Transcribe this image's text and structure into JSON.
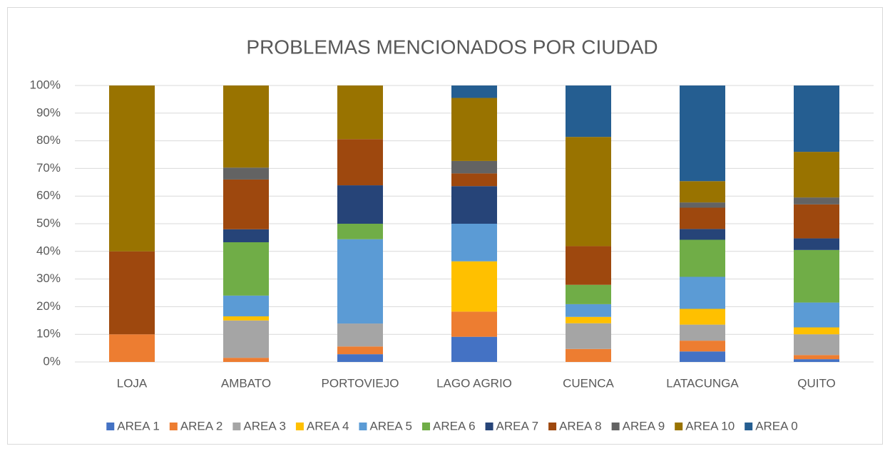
{
  "chart_data": {
    "type": "stacked_bar",
    "title": "PROBLEMAS MENCIONADOS POR CIUDAD",
    "categories": [
      "LOJA",
      "AMBATO",
      "PORTOVIEJO",
      "LAGO AGRIO",
      "CUENCA",
      "LATACUNGA",
      "QUITO"
    ],
    "series": [
      {
        "name": "AREA 1",
        "color": "#4472c4",
        "values": [
          0,
          0,
          2.8,
          9.1,
          0,
          3.8,
          1
        ]
      },
      {
        "name": "AREA 2",
        "color": "#ed7d31",
        "values": [
          10,
          1.5,
          2.8,
          9.1,
          4.7,
          3.9,
          1.5
        ]
      },
      {
        "name": "AREA 3",
        "color": "#a5a5a5",
        "values": [
          0,
          13.5,
          8.3,
          0,
          9.3,
          5.8,
          7.5
        ]
      },
      {
        "name": "AREA 4",
        "color": "#ffc000",
        "values": [
          0,
          1.5,
          0,
          18.2,
          2.3,
          5.7,
          2.5
        ]
      },
      {
        "name": "AREA 5",
        "color": "#5b9bd5",
        "values": [
          0,
          7.5,
          30.5,
          13.6,
          4.6,
          11.6,
          9
        ]
      },
      {
        "name": "AREA 6",
        "color": "#70ad47",
        "values": [
          0,
          19.3,
          5.6,
          0,
          7,
          13.4,
          19
        ]
      },
      {
        "name": "AREA 7",
        "color": "#264478",
        "values": [
          0,
          4.7,
          13.9,
          13.6,
          0,
          3.9,
          4.2
        ]
      },
      {
        "name": "AREA 8",
        "color": "#9e480e",
        "values": [
          30,
          18,
          16.7,
          4.6,
          14,
          7.7,
          12.3
        ]
      },
      {
        "name": "AREA 9",
        "color": "#636363",
        "values": [
          0,
          4.3,
          0,
          4.5,
          0,
          1.9,
          2.5
        ]
      },
      {
        "name": "AREA 10",
        "color": "#997300",
        "values": [
          60,
          29.7,
          19.4,
          22.8,
          39.5,
          7.7,
          16.5
        ]
      },
      {
        "name": "AREA 0",
        "color": "#255e91",
        "values": [
          0,
          0,
          0,
          4.5,
          18.6,
          34.6,
          24
        ]
      }
    ],
    "ylim": [
      0,
      100
    ],
    "yticks": [
      {
        "value": 0,
        "label": "0%"
      },
      {
        "value": 10,
        "label": "10%"
      },
      {
        "value": 20,
        "label": "20%"
      },
      {
        "value": 30,
        "label": "30%"
      },
      {
        "value": 40,
        "label": "40%"
      },
      {
        "value": 50,
        "label": "50%"
      },
      {
        "value": 60,
        "label": "60%"
      },
      {
        "value": 70,
        "label": "70%"
      },
      {
        "value": 80,
        "label": "80%"
      },
      {
        "value": 90,
        "label": "90%"
      },
      {
        "value": 100,
        "label": "100%"
      }
    ],
    "grid": true,
    "legend": "bottom"
  }
}
